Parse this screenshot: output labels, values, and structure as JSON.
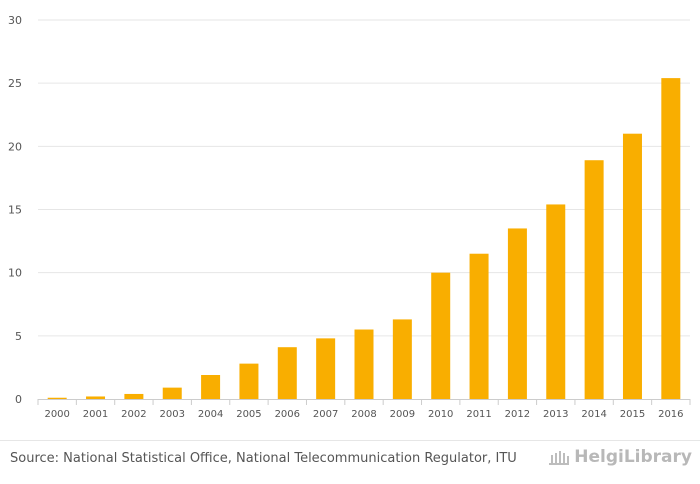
{
  "chart_data": {
    "type": "bar",
    "categories": [
      "2000",
      "2001",
      "2002",
      "2003",
      "2004",
      "2005",
      "2006",
      "2007",
      "2008",
      "2009",
      "2010",
      "2011",
      "2012",
      "2013",
      "2014",
      "2015",
      "2016"
    ],
    "values": [
      0.1,
      0.2,
      0.4,
      0.9,
      1.9,
      2.8,
      4.1,
      4.8,
      5.5,
      6.3,
      10.0,
      11.5,
      13.5,
      15.4,
      18.9,
      21.0,
      25.4
    ],
    "ylim": [
      0,
      30
    ],
    "yticks": [
      0,
      5,
      10,
      15,
      20,
      25,
      30
    ],
    "title": "",
    "xlabel": "",
    "ylabel": "",
    "grid": true,
    "bar_color": "#F9AE00"
  },
  "footer": {
    "source": "Source: National Statistical Office, National Telecommunication Regulator, ITU",
    "logo_text": "HelgiLibrary"
  }
}
